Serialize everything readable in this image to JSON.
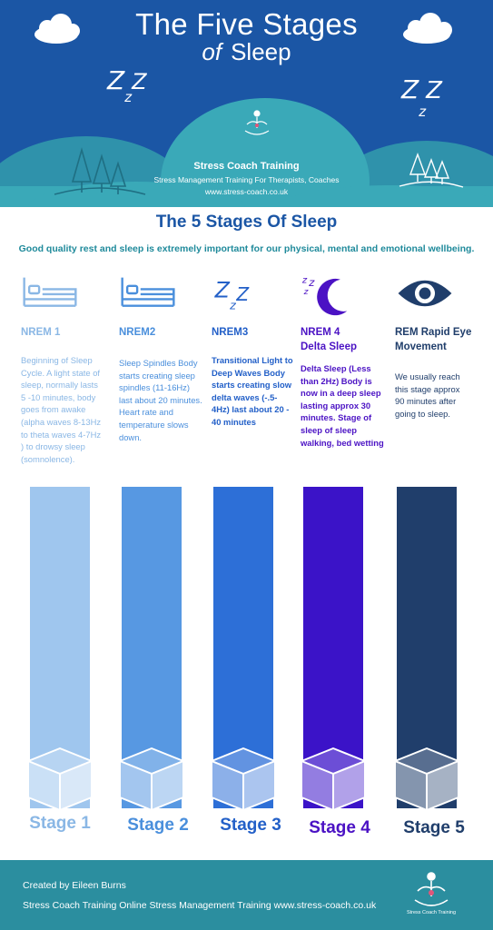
{
  "header": {
    "title": "The Five Stages",
    "title_of": "of",
    "title_sleep": "Sleep",
    "zzz": "Z z Z",
    "brand": "Stress Coach Training",
    "tagline": "Stress Management Training For Therapists, Coaches",
    "url": "www.stress-coach.co.uk"
  },
  "intro": {
    "heading": "The 5 Stages Of Sleep",
    "text": "Good quality rest and sleep is extremely important for our physical, mental and emotional wellbeing."
  },
  "stages": [
    {
      "name": "NREM 1",
      "icon": "bed-icon",
      "description": "Beginning of Sleep Cycle. A light state of sleep, normally lasts 5 -10 minutes, body goes from awake (alpha waves 8-13Hz to theta waves 4-7Hz ) to drowsy sleep (somnolence).",
      "label": "Stage 1",
      "color": "#9fc6ee",
      "text_color": "#8ab7e5"
    },
    {
      "name": "NREM2",
      "icon": "bed-icon",
      "description": "Sleep Spindles Body starts creating sleep spindles (11-16Hz) last about 20 minutes. Heart rate and temperature slows down.",
      "label": "Stage 2",
      "color": "#5798e2",
      "text_color": "#4a8fdc"
    },
    {
      "name": "NREM3",
      "icon": "zzz-icon",
      "description": "Transitional Light to Deep Waves Body starts creating slow delta waves (-.5- 4Hz) last about 20 - 40 minutes",
      "label": "Stage 3",
      "color": "#2d6fd7",
      "text_color": "#2360c8"
    },
    {
      "name": "NREM 4\nDelta Sleep",
      "icon": "moon-zzz-icon",
      "description": "Delta Sleep (Less than 2Hz) Body is now in a deep sleep lasting approx 30 minutes. Stage of sleep of sleep walking, bed wetting",
      "label": "Stage 4",
      "color": "#3b13c8",
      "text_color": "#4b12c4"
    },
    {
      "name": "REM Rapid Eye\nMovement",
      "icon": "eye-icon",
      "description": "We usually reach this stage approx 90 minutes after going to sleep.",
      "label": "Stage 5",
      "color": "#203e6b",
      "text_color": "#203e6b"
    }
  ],
  "footer": {
    "created": "Created by Eileen Burns",
    "line": "Stress Coach Training Online Stress Management Training www.stress-coach.co.uk",
    "logo_name": "Stress Coach Training"
  },
  "colors": {
    "header_blue": "#1b56a5",
    "hill_teal": "#3aa9b8",
    "footer_teal": "#2b8e9f",
    "title_blue": "#1b56a5"
  }
}
